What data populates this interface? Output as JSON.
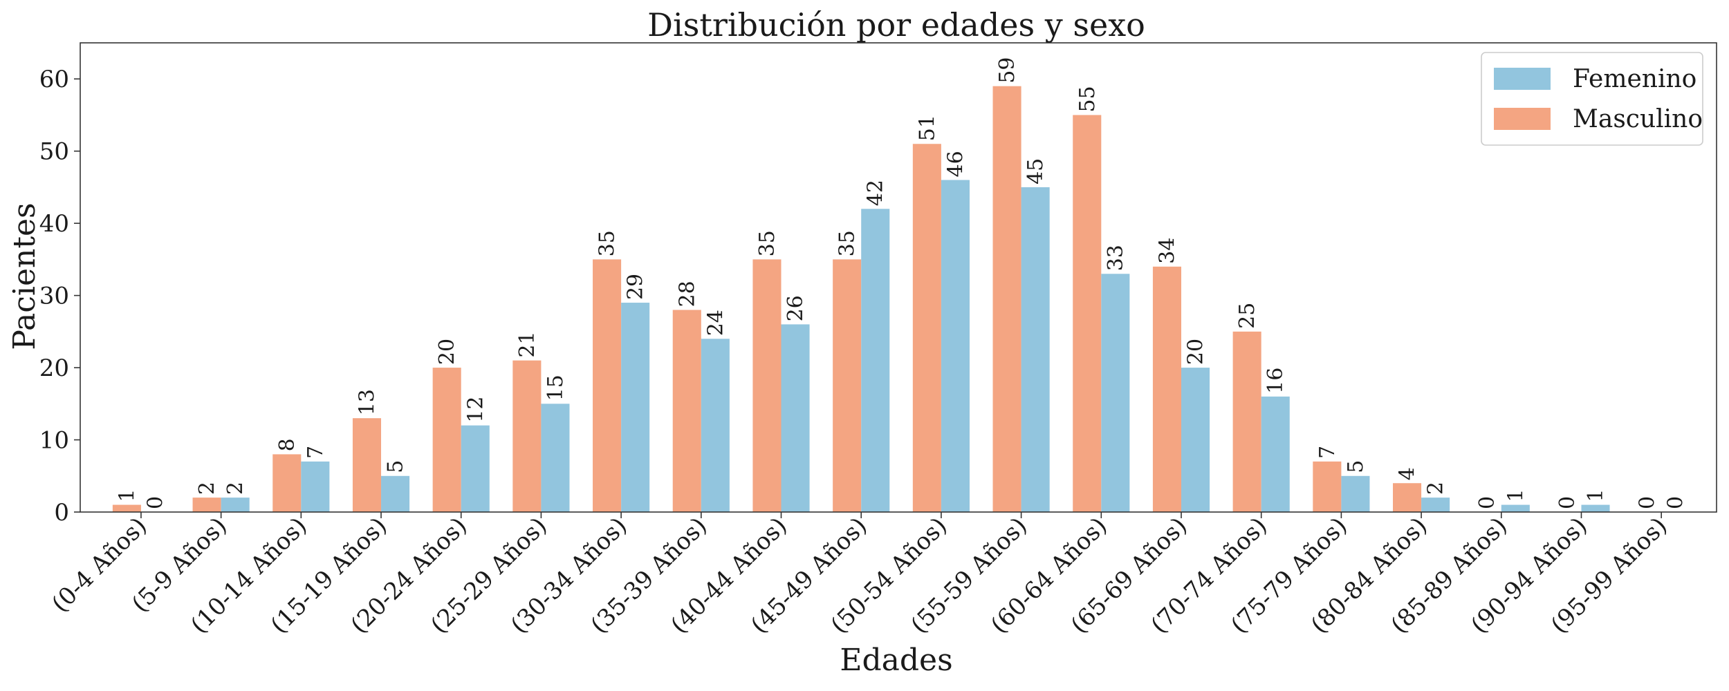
{
  "chart_data": {
    "type": "bar",
    "title": "Distribución por edades y sexo",
    "xlabel": "Edades",
    "ylabel": "Pacientes",
    "ylim": [
      0,
      65
    ],
    "yticks": [
      0,
      10,
      20,
      30,
      40,
      50,
      60
    ],
    "grid": false,
    "legend_position": "top-right",
    "categories": [
      "(0-4 Años)",
      "(5-9 Años)",
      "(10-14 Años)",
      "(15-19 Años)",
      "(20-24 Años)",
      "(25-29 Años)",
      "(30-34 Años)",
      "(35-39 Años)",
      "(40-44 Años)",
      "(45-49 Años)",
      "(50-54 Años)",
      "(55-59 Años)",
      "(60-64 Años)",
      "(65-69 Años)",
      "(70-74 Años)",
      "(75-79 Años)",
      "(80-84 Años)",
      "(85-89 Años)",
      "(90-94 Años)",
      "(95-99 Años)"
    ],
    "series": [
      {
        "name": "Masculino",
        "color": "#f4a582",
        "values": [
          1,
          2,
          8,
          13,
          20,
          21,
          35,
          28,
          35,
          35,
          51,
          59,
          55,
          34,
          25,
          7,
          4,
          0,
          0,
          0
        ]
      },
      {
        "name": "Femenino",
        "color": "#92c5de",
        "values": [
          0,
          2,
          7,
          5,
          12,
          15,
          29,
          24,
          26,
          42,
          46,
          45,
          33,
          20,
          16,
          5,
          2,
          1,
          1,
          0
        ]
      }
    ],
    "legend_order": [
      "Femenino",
      "Masculino"
    ]
  }
}
